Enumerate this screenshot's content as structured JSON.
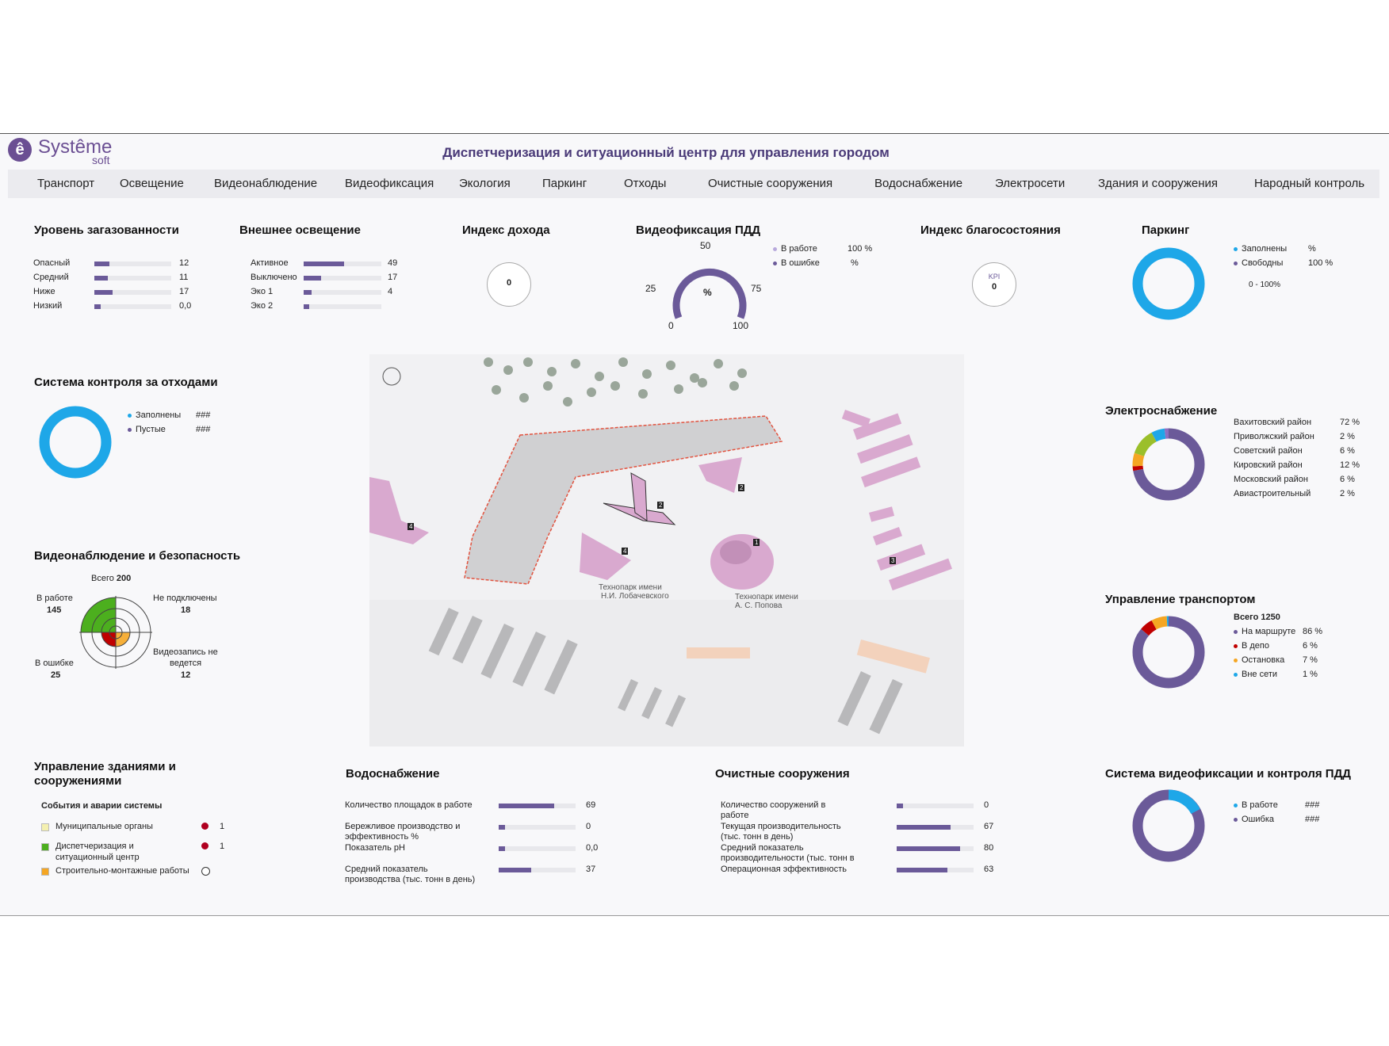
{
  "app": {
    "logo_name": "Systême",
    "logo_sub": "soft",
    "title": "Диспетчеризация и ситуационный центр для управления городом"
  },
  "nav": [
    "Транспорт",
    "Освещение",
    "Видеонаблюдение",
    "Видеофиксация",
    "Экология",
    "Паркинг",
    "Отходы",
    "Очистные сооружения",
    "Водоснабжение",
    "Электросети",
    "Здания и сооружения",
    "Народный контроль"
  ],
  "colors": {
    "accent": "#6b5a99",
    "donut_blue": "#1ea7e8",
    "purple": "#6b5a99"
  },
  "gas": {
    "title": "Уровень загазованности",
    "rows": [
      {
        "label": "Опасный",
        "value": "12",
        "fill": 0.2
      },
      {
        "label": "Средний",
        "value": "11",
        "fill": 0.18
      },
      {
        "label": "Ниже",
        "value": "17",
        "fill": 0.24
      },
      {
        "label": "Низкий",
        "value": "0,0",
        "fill": 0.08
      }
    ]
  },
  "lighting": {
    "title": "Внешнее освещение",
    "rows": [
      {
        "label": "Активное",
        "value": "49",
        "fill": 0.52
      },
      {
        "label": "Выключено",
        "value": "17",
        "fill": 0.22
      },
      {
        "label": "Эко 1",
        "value": "4",
        "fill": 0.1
      },
      {
        "label": "Эко 2",
        "value": "",
        "fill": 0.07
      }
    ]
  },
  "income": {
    "title": "Индекс дохода",
    "value": "0"
  },
  "pdd": {
    "title": "Видеофиксация ПДД",
    "center": "%",
    "ticks": [
      "0",
      "25",
      "50",
      "75",
      "100"
    ],
    "legend": [
      {
        "label": "В работе",
        "value": "100 %"
      },
      {
        "label": "В ошибке",
        "value": "%"
      }
    ]
  },
  "welfare": {
    "title": "Индекс благосостояния",
    "kpi": "KPI",
    "value": "0"
  },
  "parking": {
    "title": "Паркинг",
    "legend": [
      {
        "label": "Заполнены",
        "value": "%"
      },
      {
        "label": "Свободны",
        "value": "100 %"
      }
    ],
    "range": "0 - 100%"
  },
  "waste": {
    "title": "Система контроля за отходами",
    "legend": [
      {
        "label": "Заполнены",
        "value": "###"
      },
      {
        "label": "Пустые",
        "value": "###"
      }
    ]
  },
  "video": {
    "title": "Видеонаблюдение и безопасность",
    "total_label": "Всего",
    "total": "200",
    "working_label": "В работе",
    "working": "145",
    "not_connected_label": "Не подключены",
    "not_connected": "18",
    "error_label": "В ошибке",
    "error": "25",
    "no_record_label1": "Видеозапись не",
    "no_record_label2": "ведется",
    "no_record": "12"
  },
  "map": {
    "label1a": "Технопарк имени",
    "label1b": "Н.И. Лобачевского",
    "label2a": "Технопарк имени",
    "label2b": "А. С. Попова",
    "markers": [
      "1",
      "2",
      "3",
      "4",
      "4",
      "2"
    ]
  },
  "power": {
    "title": "Электроснабжение",
    "rows": [
      {
        "label": "Вахитовский район",
        "value": "72 %"
      },
      {
        "label": "Приволжский район",
        "value": "2 %"
      },
      {
        "label": "Советский район",
        "value": "6 %"
      },
      {
        "label": "Кировский район",
        "value": "12 %"
      },
      {
        "label": "Московский район",
        "value": "6 %"
      },
      {
        "label": "Авиастроительный",
        "value": "2 %"
      }
    ]
  },
  "transport": {
    "title": "Управление транспортом",
    "total": "Всего 1250",
    "rows": [
      {
        "label": "На маршруте",
        "value": "86 %",
        "color": "#6b5a99"
      },
      {
        "label": "В депо",
        "value": "6 %",
        "color": "#c00000"
      },
      {
        "label": "Остановка",
        "value": "7 %",
        "color": "#f5a623"
      },
      {
        "label": "Вне сети",
        "value": "1 %",
        "color": "#1ea7e8"
      }
    ]
  },
  "buildings": {
    "title1": "Управление зданиями и",
    "title2": "сооружениями",
    "sub": "События и аварии системы",
    "rows": [
      {
        "label": "Муниципальные органы",
        "label2": "",
        "value": "1",
        "sq": "#f4f0b0",
        "dot": "#b00020"
      },
      {
        "label": "Диспетчеризация и",
        "label2": "ситуационный центр",
        "value": "1",
        "sq": "#4caf1e",
        "dot": "#b00020"
      },
      {
        "label": "Строительно-монтажные работы",
        "label2": "",
        "value": "",
        "sq": "#f5a623",
        "dot": "none"
      }
    ]
  },
  "water": {
    "title": "Водоснабжение",
    "rows": [
      {
        "label": "Количество площадок в работе",
        "label2": "",
        "value": "69",
        "fill": 0.72
      },
      {
        "label": "Бережливое производство и",
        "label2": "эффективность %",
        "value": "0",
        "fill": 0.08
      },
      {
        "label": "Показатель pH",
        "label2": "",
        "value": "0,0",
        "fill": 0.08
      },
      {
        "label": "Средний показатель",
        "label2": "производства (тыс. тонн в день)",
        "value": "37",
        "fill": 0.42
      }
    ]
  },
  "treatment": {
    "title": "Очистные сооружения",
    "rows": [
      {
        "label": "Количество сооружений в",
        "label2": "работе",
        "value": "0",
        "fill": 0.08
      },
      {
        "label": "Текущая производительность",
        "label2": "(тыс. тонн в день)",
        "value": "67",
        "fill": 0.7
      },
      {
        "label": "Средний показатель",
        "label2": "производительности (тыс. тонн в",
        "value": "80",
        "fill": 0.82
      },
      {
        "label": "Операционная эффективность",
        "label2": "",
        "value": "63",
        "fill": 0.66
      }
    ]
  },
  "pdd_control": {
    "title": "Система видеофиксации и контроля ПДД",
    "legend": [
      {
        "label": "В работе",
        "value": "###"
      },
      {
        "label": "Ошибка",
        "value": "###"
      }
    ]
  }
}
